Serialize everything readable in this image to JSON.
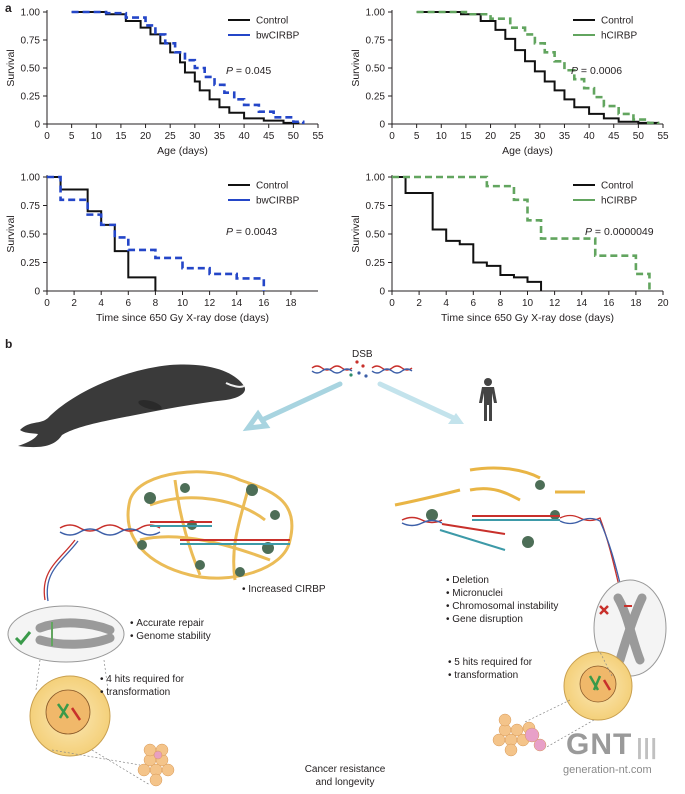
{
  "panel_labels": {
    "a": "a",
    "b": "b"
  },
  "colors": {
    "control": "#111111",
    "bw": "#2446c8",
    "human": "#62a55f",
    "dna_red": "#c8302b",
    "dna_blue": "#3d5fa8",
    "protein": "#e9b545",
    "cell": "#f6d98a"
  },
  "chart_data": [
    {
      "type": "line",
      "id": "bw-lifespan",
      "xlabel": "Age (days)",
      "ylabel": "Survival",
      "xlim": [
        0,
        55
      ],
      "ylim": [
        0,
        1
      ],
      "xticks": [
        0,
        5,
        10,
        15,
        20,
        25,
        30,
        35,
        40,
        45,
        50,
        55
      ],
      "yticks": [
        "0",
        "0.25",
        "0.50",
        "0.75",
        "1.00"
      ],
      "annotation": "P = 0.045",
      "series": [
        {
          "name": "Control",
          "style": "solid",
          "color": "#111111",
          "x": [
            5,
            12,
            16,
            19,
            21,
            23,
            25,
            27,
            28,
            30,
            31,
            33,
            35,
            37,
            40,
            44,
            48,
            51
          ],
          "y": [
            1.0,
            0.98,
            0.92,
            0.86,
            0.8,
            0.72,
            0.64,
            0.55,
            0.46,
            0.38,
            0.3,
            0.22,
            0.15,
            0.1,
            0.05,
            0.03,
            0.01,
            0.0
          ]
        },
        {
          "name": "bwCIRBP",
          "style": "dashed",
          "color": "#2446c8",
          "x": [
            5,
            12,
            16,
            20,
            22,
            24,
            26,
            28,
            30,
            32,
            34,
            36,
            38,
            40,
            43,
            46,
            50,
            52
          ],
          "y": [
            1.0,
            0.99,
            0.95,
            0.88,
            0.8,
            0.72,
            0.64,
            0.57,
            0.5,
            0.42,
            0.35,
            0.28,
            0.22,
            0.17,
            0.11,
            0.06,
            0.02,
            0.0
          ]
        }
      ]
    },
    {
      "type": "line",
      "id": "human-lifespan",
      "xlabel": "Age (days)",
      "ylabel": "Survival",
      "xlim": [
        0,
        55
      ],
      "ylim": [
        0,
        1
      ],
      "xticks": [
        0,
        5,
        10,
        15,
        20,
        25,
        30,
        35,
        40,
        45,
        50,
        55
      ],
      "yticks": [
        "0",
        "0.25",
        "0.50",
        "0.75",
        "1.00"
      ],
      "annotation": "P = 0.0006",
      "series": [
        {
          "name": "Control",
          "style": "solid",
          "color": "#111111",
          "x": [
            5,
            14,
            18,
            21,
            23,
            25,
            27,
            29,
            31,
            33,
            35,
            37,
            40,
            43,
            46,
            50,
            54
          ],
          "y": [
            1.0,
            0.98,
            0.92,
            0.84,
            0.76,
            0.66,
            0.56,
            0.47,
            0.38,
            0.3,
            0.22,
            0.15,
            0.09,
            0.05,
            0.02,
            0.01,
            0.0
          ]
        },
        {
          "name": "hCIRBP",
          "style": "dashed",
          "color": "#62a55f",
          "x": [
            5,
            15,
            20,
            24,
            27,
            29,
            31,
            33,
            35,
            37,
            39,
            41,
            43,
            46,
            49,
            52,
            54
          ],
          "y": [
            1.0,
            0.98,
            0.94,
            0.86,
            0.8,
            0.72,
            0.64,
            0.56,
            0.48,
            0.4,
            0.32,
            0.24,
            0.16,
            0.09,
            0.04,
            0.01,
            0.0
          ]
        }
      ]
    },
    {
      "type": "line",
      "id": "bw-xray",
      "xlabel": "Time since 650 Gy X-ray dose (days)",
      "ylabel": "Survival",
      "xlim": [
        0,
        20
      ],
      "ylim": [
        0,
        1
      ],
      "xticks": [
        0,
        2,
        4,
        6,
        8,
        10,
        12,
        14,
        16,
        18
      ],
      "yticks": [
        "0",
        "0.25",
        "0.50",
        "0.75",
        "1.00"
      ],
      "annotation": "P = 0.0043",
      "series": [
        {
          "name": "Control",
          "style": "solid",
          "color": "#111111",
          "x": [
            0,
            1,
            3,
            4,
            5,
            6,
            7,
            8
          ],
          "y": [
            1.0,
            0.89,
            0.7,
            0.58,
            0.35,
            0.12,
            0.12,
            0.0
          ]
        },
        {
          "name": "bwCIRBP",
          "style": "dashed",
          "color": "#2446c8",
          "x": [
            0,
            1,
            3,
            4,
            5,
            6,
            8,
            10,
            12,
            14,
            16
          ],
          "y": [
            1.0,
            0.8,
            0.67,
            0.58,
            0.47,
            0.36,
            0.29,
            0.2,
            0.15,
            0.11,
            0.0
          ]
        }
      ]
    },
    {
      "type": "line",
      "id": "human-xray",
      "xlabel": "Time since 650 Gy X-ray dose (days)",
      "ylabel": "Survival",
      "xlim": [
        0,
        20
      ],
      "ylim": [
        0,
        1
      ],
      "xticks": [
        0,
        2,
        4,
        6,
        8,
        10,
        12,
        14,
        16,
        18,
        20
      ],
      "yticks": [
        "0",
        "0.25",
        "0.50",
        "0.75",
        "1.00"
      ],
      "annotation": "P = 0.0000049",
      "series": [
        {
          "name": "Control",
          "style": "solid",
          "color": "#111111",
          "x": [
            0,
            1,
            2,
            3,
            4,
            5,
            6,
            7,
            8,
            9,
            10,
            11
          ],
          "y": [
            1.0,
            0.86,
            0.86,
            0.54,
            0.44,
            0.41,
            0.25,
            0.22,
            0.14,
            0.12,
            0.08,
            0.0
          ]
        },
        {
          "name": "hCIRBP",
          "style": "dashed",
          "color": "#62a55f",
          "x": [
            0,
            7,
            9,
            10,
            11,
            15,
            17,
            18,
            19
          ],
          "y": [
            1.0,
            0.92,
            0.8,
            0.62,
            0.46,
            0.31,
            0.31,
            0.15,
            0.0
          ]
        }
      ]
    }
  ],
  "schematic": {
    "dsb_label": "DSB",
    "whale_bullets": [
      "Accurate repair",
      "Genome stability"
    ],
    "increased_label": "Increased CIRBP",
    "whale_hits": [
      "4 hits required for",
      "transformation"
    ],
    "human_bullets": [
      "Deletion",
      "Micronuclei",
      "Chromosomal instability",
      "Gene disruption"
    ],
    "human_hits": [
      "5 hits required for",
      "transformation"
    ],
    "outcome": [
      "Cancer resistance",
      "and longevity"
    ]
  },
  "watermark": {
    "logo": "GNT",
    "site": "generation-nt.com"
  }
}
